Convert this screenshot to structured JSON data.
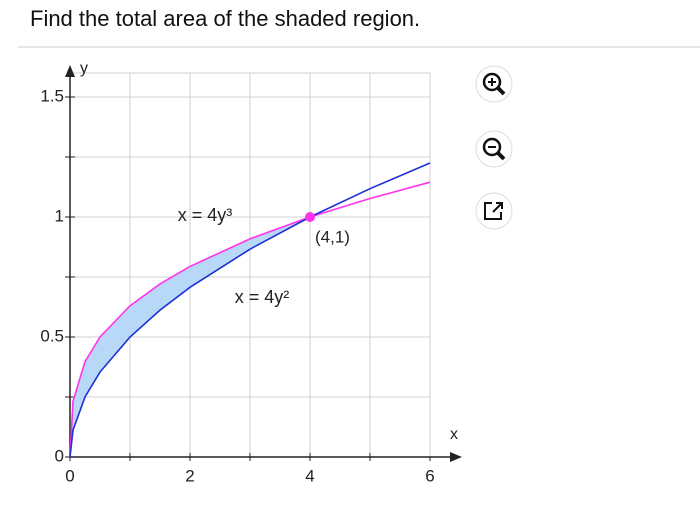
{
  "question": "Find the total area of the shaded region.",
  "chart_data": {
    "type": "line",
    "x_label": "x",
    "y_label": "y",
    "xlim": [
      0,
      6.4
    ],
    "ylim": [
      0,
      1.6
    ],
    "xticks": [
      0,
      2,
      4,
      6
    ],
    "xminor": [
      1,
      3,
      5
    ],
    "yticks": [
      0,
      0.5,
      1,
      1.5
    ],
    "yminor": [
      0.25,
      0.75,
      1.25
    ],
    "grid": true,
    "series": [
      {
        "name": "x = 4y³",
        "color": "#ff33ee",
        "x": [
          0,
          0.05,
          0.25,
          0.5,
          1,
          1.5,
          2,
          3,
          4,
          5,
          6
        ],
        "values": [
          0,
          0.232,
          0.397,
          0.5,
          0.63,
          0.721,
          0.794,
          0.909,
          1,
          1.077,
          1.145
        ]
      },
      {
        "name": "x = 4y²",
        "color": "#1f2fd6",
        "x": [
          0,
          0.05,
          0.25,
          0.5,
          1,
          1.5,
          2,
          3,
          4,
          5,
          6
        ],
        "values": [
          0,
          0.112,
          0.25,
          0.354,
          0.5,
          0.612,
          0.707,
          0.866,
          1,
          1.118,
          1.225
        ]
      }
    ],
    "shade_color": "#b8d8f8",
    "point": {
      "x": 4,
      "y": 1,
      "label": "(4,1)",
      "color": "#ff33ee"
    }
  }
}
